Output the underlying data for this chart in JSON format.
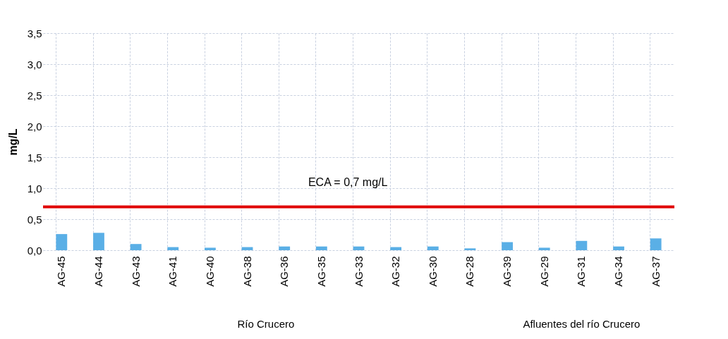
{
  "chart_data": {
    "type": "bar",
    "ylabel": "mg/L",
    "categories": [
      "AG-45",
      "AG-44",
      "AG-43",
      "AG-41",
      "AG-40",
      "AG-38",
      "AG-36",
      "AG-35",
      "AG-33",
      "AG-32",
      "AG-30",
      "AG-28",
      "AG-39",
      "AG-29",
      "AG-31",
      "AG-34",
      "AG-37"
    ],
    "values": [
      0.26,
      0.28,
      0.1,
      0.05,
      0.04,
      0.05,
      0.06,
      0.06,
      0.06,
      0.05,
      0.06,
      0.03,
      0.13,
      0.04,
      0.15,
      0.06,
      0.19
    ],
    "color": "#5aafe6",
    "ylim": [
      0,
      3.5
    ],
    "yticks": [
      {
        "value": 0,
        "label": "0,0"
      },
      {
        "value": 0.5,
        "label": "0,5"
      },
      {
        "value": 1,
        "label": "1,0"
      },
      {
        "value": 1.5,
        "label": "1,5"
      },
      {
        "value": 2,
        "label": "2,0"
      },
      {
        "value": 2.5,
        "label": "2,5"
      },
      {
        "value": 3,
        "label": "3,0"
      },
      {
        "value": 3.5,
        "label": "3,5"
      }
    ],
    "grid": true,
    "ref_lines": [
      {
        "axis": "y",
        "value": 0.7,
        "label": "ECA = 0,7 mg/L",
        "color": "#e00000"
      }
    ],
    "annotations": [
      "Río Crucero",
      "Afluentes del río Crucero"
    ]
  }
}
